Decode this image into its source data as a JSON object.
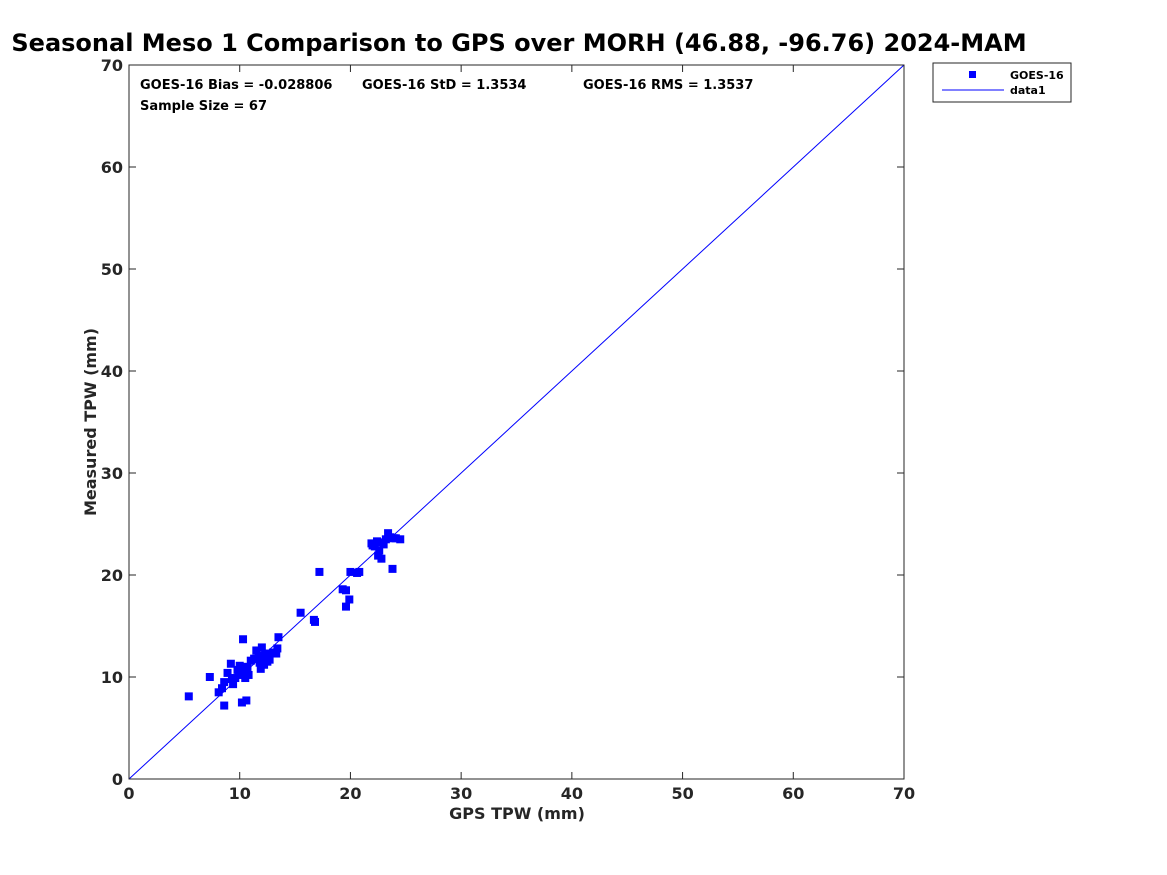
{
  "chart_data": {
    "type": "scatter",
    "title": "Seasonal Meso 1 Comparison to GPS over MORH (46.88, -96.76) 2024-MAM",
    "xlabel": "GPS TPW (mm)",
    "ylabel": "Measured TPW (mm)",
    "xlim": [
      0,
      70
    ],
    "ylim": [
      0,
      70
    ],
    "xticks": [
      "0",
      "10",
      "20",
      "30",
      "40",
      "50",
      "60",
      "70"
    ],
    "yticks": [
      "0",
      "10",
      "20",
      "30",
      "40",
      "50",
      "60",
      "70"
    ],
    "grid": false,
    "legend_position": "top-right",
    "stats": {
      "bias": "GOES-16 Bias = -0.028806",
      "std": "GOES-16 StD = 1.3534",
      "rms": "GOES-16 RMS = 1.3537",
      "sample": "Sample Size = 67"
    },
    "series": [
      {
        "name": "GOES-16",
        "marker": "square",
        "color": "#0000ff",
        "points": [
          [
            5.4,
            8.1
          ],
          [
            7.3,
            10.0
          ],
          [
            8.1,
            8.5
          ],
          [
            8.4,
            8.9
          ],
          [
            8.6,
            9.5
          ],
          [
            8.6,
            7.2
          ],
          [
            8.9,
            10.4
          ],
          [
            9.2,
            11.3
          ],
          [
            9.4,
            9.3
          ],
          [
            9.6,
            9.9
          ],
          [
            9.8,
            10.7
          ],
          [
            10.0,
            11.1
          ],
          [
            10.2,
            10.4
          ],
          [
            10.2,
            7.5
          ],
          [
            10.3,
            13.7
          ],
          [
            10.5,
            9.9
          ],
          [
            10.6,
            7.7
          ],
          [
            10.7,
            10.9
          ],
          [
            10.8,
            10.2
          ],
          [
            11.3,
            11.8
          ],
          [
            11.7,
            12.1
          ],
          [
            11.8,
            11.4
          ],
          [
            11.9,
            10.8
          ],
          [
            12.0,
            12.9
          ],
          [
            12.1,
            11.9
          ],
          [
            12.3,
            12.3
          ],
          [
            12.5,
            11.5
          ],
          [
            12.6,
            12.1
          ],
          [
            12.7,
            11.7
          ],
          [
            13.0,
            12.4
          ],
          [
            13.3,
            12.3
          ],
          [
            13.4,
            12.8
          ],
          [
            13.5,
            13.9
          ],
          [
            15.5,
            16.3
          ],
          [
            16.7,
            15.6
          ],
          [
            16.8,
            15.4
          ],
          [
            17.2,
            20.3
          ],
          [
            19.3,
            18.6
          ],
          [
            19.6,
            18.5
          ],
          [
            19.6,
            16.9
          ],
          [
            19.9,
            17.6
          ],
          [
            20.0,
            20.3
          ],
          [
            20.6,
            20.2
          ],
          [
            20.8,
            20.3
          ],
          [
            21.9,
            23.1
          ],
          [
            22.0,
            22.9
          ],
          [
            22.2,
            22.8
          ],
          [
            22.4,
            23.3
          ],
          [
            22.5,
            21.9
          ],
          [
            22.6,
            22.4
          ],
          [
            22.8,
            21.6
          ],
          [
            23.0,
            23.0
          ],
          [
            23.2,
            23.5
          ],
          [
            23.4,
            24.1
          ],
          [
            23.6,
            23.7
          ],
          [
            23.8,
            20.6
          ],
          [
            24.1,
            23.6
          ],
          [
            24.5,
            23.5
          ],
          [
            10.4,
            11.0
          ],
          [
            11.5,
            12.6
          ],
          [
            12.4,
            12.0
          ],
          [
            9.9,
            10.2
          ],
          [
            11.0,
            11.6
          ],
          [
            22.7,
            23.2
          ],
          [
            23.9,
            23.6
          ],
          [
            12.2,
            11.2
          ],
          [
            9.3,
            9.8
          ]
        ]
      },
      {
        "name": "data1",
        "line": "identity",
        "color": "#0000ff",
        "points": [
          [
            0,
            0
          ],
          [
            70,
            70
          ]
        ]
      }
    ]
  }
}
